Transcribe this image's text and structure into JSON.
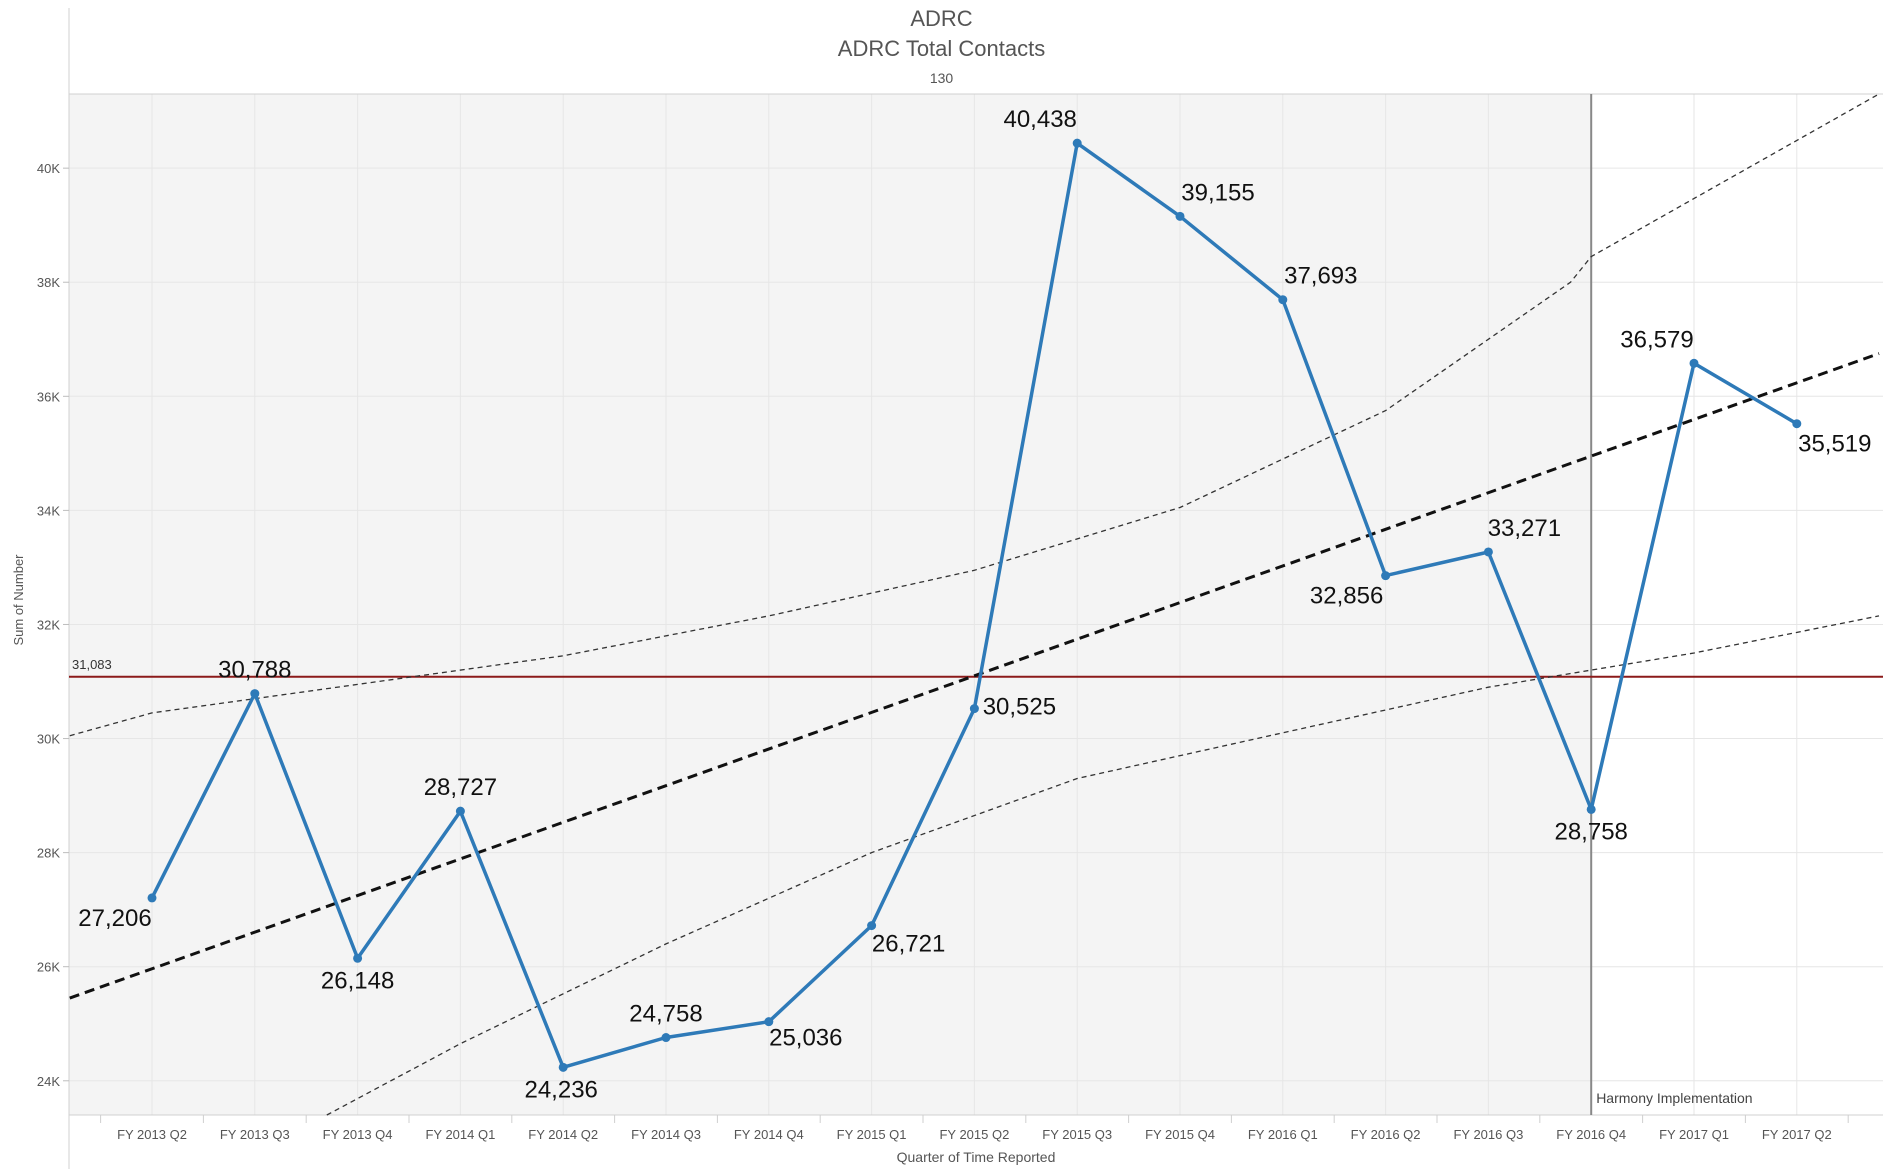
{
  "header": {
    "title": "ADRC",
    "subtitle": "ADRC Total Contacts",
    "note": "130"
  },
  "colors": {
    "series": "#2e7ab8",
    "reference_line": "#8b1a1a",
    "trend": "#111111",
    "confidence": "#333333",
    "shaded_region": "#f4f4f4",
    "marker_line": "#888888"
  },
  "chart_data": {
    "type": "line",
    "title": "ADRC",
    "subtitle": "ADRC Total Contacts",
    "xlabel": "Quarter of Time Reported",
    "ylabel": "Sum of Number",
    "ylim": [
      23400,
      41300
    ],
    "yticks": [
      24000,
      26000,
      28000,
      30000,
      32000,
      34000,
      36000,
      38000,
      40000
    ],
    "ytick_labels": [
      "24K",
      "26K",
      "28K",
      "30K",
      "32K",
      "34K",
      "36K",
      "38K",
      "40K"
    ],
    "categories": [
      "FY 2013 Q2",
      "FY 2013 Q3",
      "FY 2013 Q4",
      "FY 2014 Q1",
      "FY 2014 Q2",
      "FY 2014 Q3",
      "FY 2014 Q4",
      "FY 2015 Q1",
      "FY 2015 Q2",
      "FY 2015 Q3",
      "FY 2015 Q4",
      "FY 2016 Q1",
      "FY 2016 Q2",
      "FY 2016 Q3",
      "FY 2016 Q4",
      "FY 2017 Q1",
      "FY 2017 Q2"
    ],
    "values": [
      27206,
      30788,
      26148,
      28727,
      24236,
      24758,
      25036,
      26721,
      30525,
      40438,
      39155,
      37693,
      32856,
      33271,
      28758,
      36579,
      35519
    ],
    "data_labels": [
      "27,206",
      "30,788",
      "26,148",
      "28,727",
      "24,236",
      "24,758",
      "25,036",
      "26,721",
      "30,525",
      "40,438",
      "39,155",
      "37,693",
      "32,856",
      "33,271",
      "28,758",
      "36,579",
      "35,519"
    ],
    "reference_line": {
      "value": 31083,
      "label": "31,083"
    },
    "annotation": {
      "category": "FY 2016 Q4",
      "label": "Harmony Implementation"
    },
    "shaded_through_category": "FY 2016 Q4",
    "trend_line": {
      "x_start": -0.8,
      "y_start": 25450,
      "x_end": 16.8,
      "y_end": 36750
    },
    "confidence_upper": [
      [
        -0.8,
        30050
      ],
      [
        0,
        30450
      ],
      [
        2,
        30950
      ],
      [
        4,
        31450
      ],
      [
        6,
        32150
      ],
      [
        8,
        32950
      ],
      [
        10,
        34050
      ],
      [
        12,
        35750
      ],
      [
        13.8,
        38000
      ],
      [
        14,
        38450
      ],
      [
        16.8,
        41300
      ]
    ],
    "confidence_lower": [
      [
        1.7,
        23400
      ],
      [
        3,
        24650
      ],
      [
        5,
        26400
      ],
      [
        7,
        28000
      ],
      [
        9,
        29300
      ],
      [
        11,
        30100
      ],
      [
        13,
        30900
      ],
      [
        15,
        31500
      ],
      [
        16.8,
        32150
      ]
    ],
    "grid": true,
    "legend": "none"
  }
}
